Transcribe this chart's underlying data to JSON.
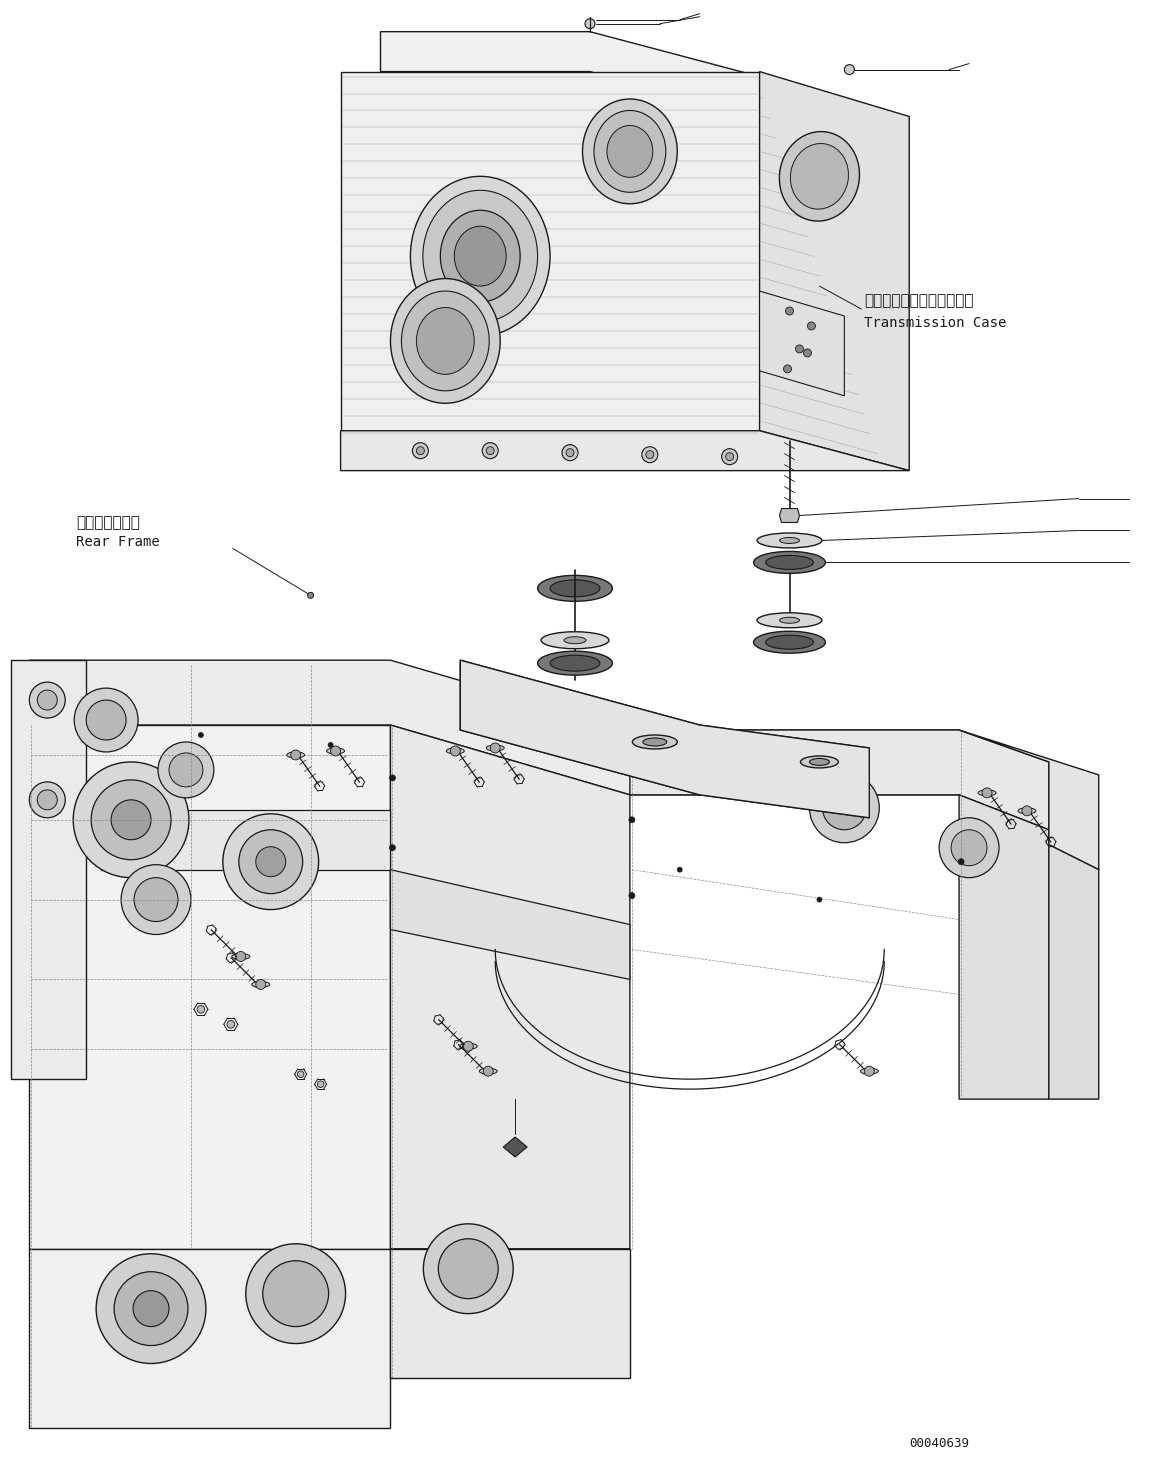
{
  "bg_color": "#ffffff",
  "line_color": "#1a1a1a",
  "fig_width": 11.63,
  "fig_height": 14.65,
  "dpi": 100,
  "label_transmission_jp": "トランスミッションケース",
  "label_transmission_en": "Transmission Case",
  "label_rear_frame_jp": "リヤーフレーム",
  "label_rear_frame_en": "Rear Frame",
  "part_number": "00040639",
  "font_size_jp": 11,
  "font_size_en": 10,
  "font_size_pn": 9
}
